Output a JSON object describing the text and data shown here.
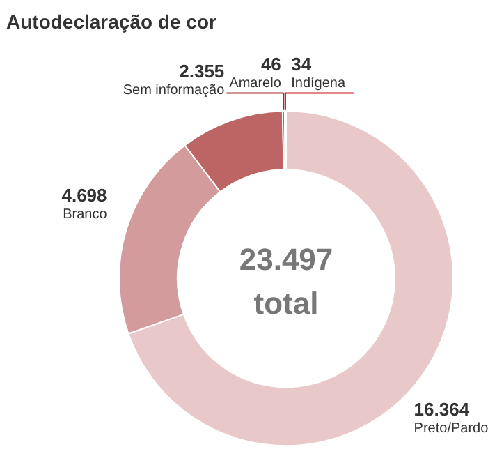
{
  "chart_data": {
    "type": "donut",
    "title": "Autodeclaração de cor",
    "categories": [
      "Preto/Pardo",
      "Branco",
      "Sem informação",
      "Amarelo",
      "Indígena"
    ],
    "values": [
      16364,
      4698,
      2355,
      46,
      34
    ],
    "value_labels": [
      "16.364",
      "4.698",
      "2.355",
      "46",
      "34"
    ],
    "colors": [
      "#e8c8c8",
      "#d39b9b",
      "#bd6565",
      "#a82c2c",
      "#cc1111"
    ],
    "annotations": [
      "23.497",
      "total"
    ]
  }
}
